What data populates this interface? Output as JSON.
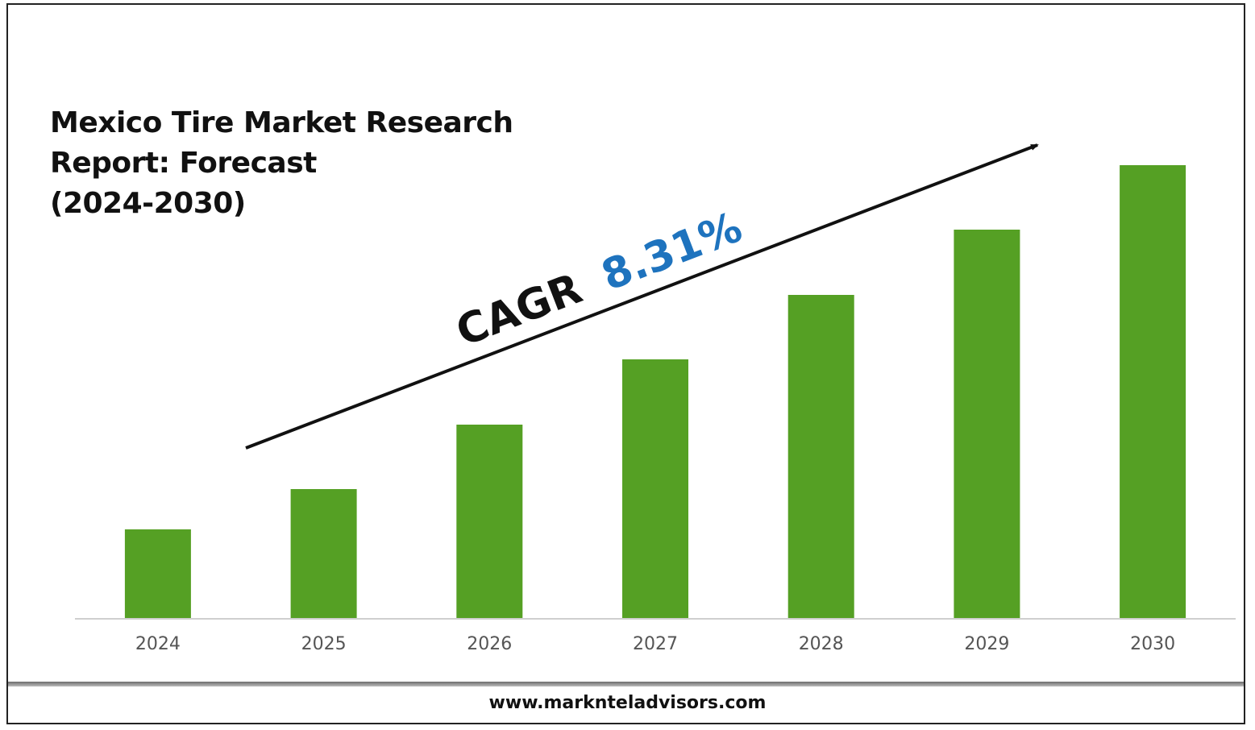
{
  "chart_data": {
    "type": "bar",
    "title_lines": [
      "Mexico Tire Market Research",
      "Report: Forecast",
      "(2024-2030)"
    ],
    "categories": [
      "2024",
      "2025",
      "2026",
      "2027",
      "2028",
      "2029",
      "2030"
    ],
    "values": [
      1.0,
      1.45,
      2.17,
      2.9,
      3.62,
      4.35,
      5.07
    ],
    "bar_color": "#55a024",
    "annotation": {
      "prefix": "CAGR",
      "value": "8.31%",
      "prefix_color": "#111111",
      "value_color": "#1e73be"
    },
    "xlabel": "",
    "ylabel": "",
    "grid": false
  },
  "footer": {
    "url": "www.marknteladvisors.com"
  }
}
